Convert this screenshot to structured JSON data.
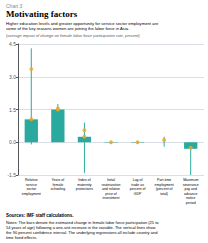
{
  "chart_data": {
    "type": "bar",
    "overtitle": "Chart 3",
    "title": "Motivating factors",
    "subtitle": "Higher education levels and greater opportunity for service sector employment are\nsome of the key reasons women are joining the labor force in Asia.",
    "ylabel": "(average impact of change on female labor force participation rate, percent)",
    "source": "Sources: IMF staff calculations.",
    "notes": "Notes: The bars denote the estimated change in female labor force participation (25 to\n54 years of age) following a one-unit increase in the variable. The vertical lines show\nthe 90 percent confidence interval. The underlying regressions all include country and\ntime fixed effects.",
    "categories": [
      "Relative\nservice\nsector\nemployment",
      "Years of\nfemale\nschooling",
      "Index of\nmaternity\nprotections",
      "Initial\nroutinization\nand relative\nprice of\ninvestment",
      "Lag of\ntrade as\npercent of\nGDP",
      "Part-time\nemployment\n(percent of\ntotal)",
      "Maximum\nseverance\npay and\nadvance\nnotice\nperiod"
    ],
    "series": [
      {
        "type": "bar",
        "color": "#2aaa9e",
        "values": [
          1.05,
          1.5,
          0.25,
          -0.02,
          -0.02,
          0.0,
          -0.3
        ],
        "ci_lower": [
          -0.1,
          1.35,
          -1.4,
          -0.08,
          -0.07,
          -0.2,
          -1.5
        ],
        "ci_upper": [
          4.3,
          1.75,
          0.9,
          0.05,
          0.04,
          0.25,
          -0.1
        ]
      },
      {
        "type": "scatter",
        "color": "#f5a623",
        "values": [
          3.35,
          1.55,
          0.55,
          0.0,
          0.0,
          0.1,
          -0.25
        ]
      },
      {
        "type": "scatter",
        "color": "#f5a623",
        "values": [
          1.05,
          1.5,
          0.25,
          null,
          null,
          null,
          null
        ]
      }
    ],
    "ylim": [
      -1.5,
      4.5
    ],
    "yticks": [
      -1.5,
      {
        "value": 0.0,
        "label": "0.0"
      },
      1.5,
      {
        "value": 3.0,
        "label": "3.0"
      },
      4.5
    ],
    "grid": true
  }
}
